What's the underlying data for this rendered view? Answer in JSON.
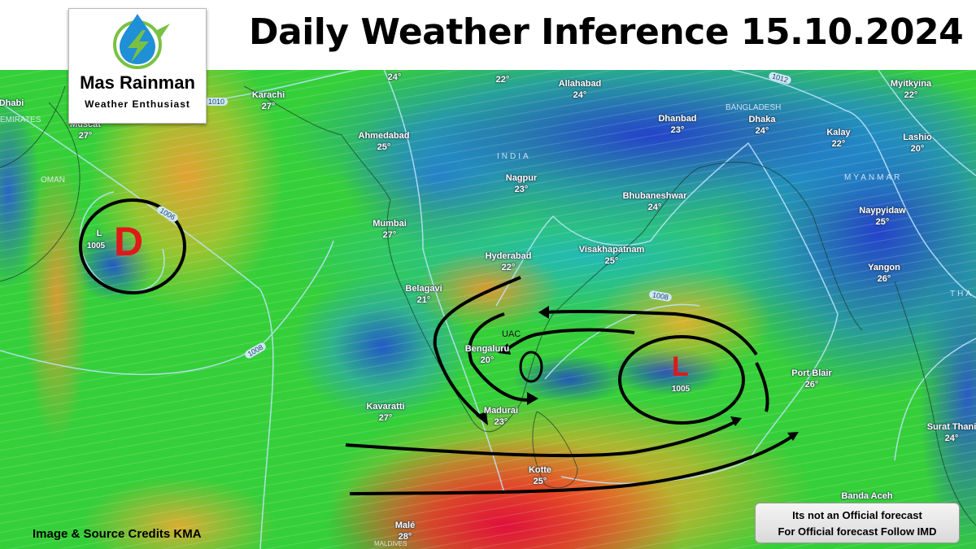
{
  "header": {
    "title": "Daily Weather Inference 15.10.2024"
  },
  "logo": {
    "name": "Mas Rainman",
    "tagline": "Weather Enthusiast",
    "colors": {
      "drop": "#1f8fd6",
      "bolt": "#7ac143"
    }
  },
  "map": {
    "cities": [
      {
        "name": "Dhabi",
        "temp": ""
      },
      {
        "name": "Karachi",
        "temp": "27°"
      },
      {
        "name": "Muscat",
        "temp": "27°"
      },
      {
        "name": "",
        "temp": "24°"
      },
      {
        "name": "",
        "temp": "22°"
      },
      {
        "name": "Allahabad",
        "temp": "24°"
      },
      {
        "name": "Ahmedabad",
        "temp": "25°"
      },
      {
        "name": "Dhanbad",
        "temp": "23°"
      },
      {
        "name": "Dhaka",
        "temp": "24°"
      },
      {
        "name": "Kalay",
        "temp": "22°"
      },
      {
        "name": "Myitkyina",
        "temp": "22°"
      },
      {
        "name": "Lashio",
        "temp": "20°"
      },
      {
        "name": "Nagpur",
        "temp": "23°"
      },
      {
        "name": "Bhubaneshwar",
        "temp": "24°"
      },
      {
        "name": "Naypyidaw",
        "temp": "25°"
      },
      {
        "name": "Mumbai",
        "temp": "27°"
      },
      {
        "name": "Hyderabad",
        "temp": "22°"
      },
      {
        "name": "Visakhapatnam",
        "temp": "25°"
      },
      {
        "name": "Yangon",
        "temp": "26°"
      },
      {
        "name": "Belagavi",
        "temp": "21°"
      },
      {
        "name": "Bengaluru",
        "temp": "20°"
      },
      {
        "name": "Port Blair",
        "temp": "26°"
      },
      {
        "name": "Kavaratti",
        "temp": "27°"
      },
      {
        "name": "Madurai",
        "temp": "23°"
      },
      {
        "name": "Surat Thani",
        "temp": "24°"
      },
      {
        "name": "Kotte",
        "temp": "25°"
      },
      {
        "name": "Banda Aceh",
        "temp": ""
      },
      {
        "name": "Malé",
        "temp": "28°"
      }
    ],
    "countries": [
      "EMIRATES",
      "OMAN",
      "INDIA",
      "BANGLADESH",
      "MYANMAR",
      "THA",
      "MALDIVES"
    ],
    "isobars": [
      "1010",
      "1012",
      "1008",
      "1008",
      "1006"
    ],
    "systems": {
      "depression": {
        "letter": "D",
        "pressure_label": "L",
        "pressure": "1005"
      },
      "low": {
        "letter": "L",
        "pressure": "1005"
      },
      "uac": {
        "label": "UAC"
      }
    },
    "colors": {
      "annotation": "#000000",
      "system_letter": "#e01818"
    }
  },
  "footer": {
    "credits": "Image & Source Credits KMA",
    "disclaimer_line1": "Its not an Official forecast",
    "disclaimer_line2": "For Official forecast Follow IMD"
  }
}
